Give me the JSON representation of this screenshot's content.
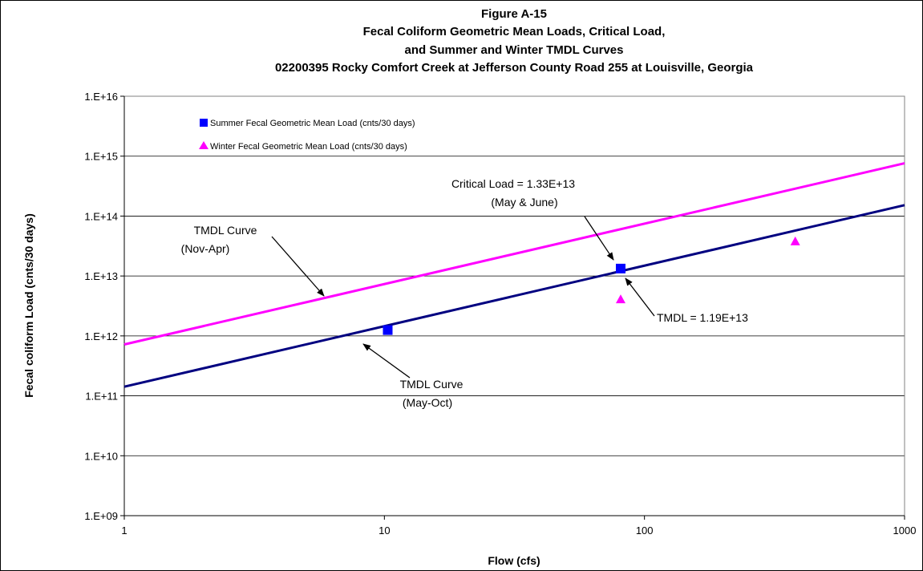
{
  "chart_data": {
    "type": "scatter",
    "title_lines": [
      "Figure A-15",
      "Fecal Coliform Geometric Mean Loads,  Critical Load,",
      "and Summer and Winter TMDL Curves",
      "02200395 Rocky Comfort Creek at Jefferson County Road 255 at Louisville, Georgia"
    ],
    "xlabel": "Flow   (cfs)",
    "ylabel": "Fecal coliform Load  (cnts/30 days)",
    "x_scale": "log",
    "y_scale": "log",
    "xlim": [
      1,
      1000
    ],
    "ylim": [
      1000000000,
      10000000000000000
    ],
    "x_ticks": [
      1,
      10,
      100,
      1000
    ],
    "x_tick_labels": [
      "1",
      "10",
      "100",
      "1000"
    ],
    "y_ticks": [
      1000000000,
      10000000000,
      100000000000,
      1000000000000,
      10000000000000,
      100000000000000,
      1000000000000000,
      10000000000000000
    ],
    "y_tick_labels": [
      "1.E+09",
      "1.E+10",
      "1.E+11",
      "1.E+12",
      "1.E+13",
      "1.E+14",
      "1.E+15",
      "1.E+16"
    ],
    "grid": "horizontal",
    "series": [
      {
        "name": "Summer Fecal Geometric Mean Load (cnts/30 days)",
        "kind": "points",
        "marker": "square",
        "color": "#0000ff",
        "points": [
          {
            "x": 10.3,
            "y": 1250000000000
          },
          {
            "x": 81,
            "y": 13300000000000
          }
        ]
      },
      {
        "name": "Winter Fecal Geometric Mean Load (cnts/30 days)",
        "kind": "points",
        "marker": "triangle",
        "color": "#ff00ff",
        "points": [
          {
            "x": 81,
            "y": 4100000000000
          },
          {
            "x": 380,
            "y": 38000000000000
          }
        ]
      },
      {
        "kind": "line",
        "color": "#ff00ff",
        "points": [
          {
            "x": 1,
            "y": 720000000000
          },
          {
            "x": 1000,
            "y": 760000000000000
          }
        ]
      },
      {
        "kind": "line",
        "color": "#000080",
        "points": [
          {
            "x": 1,
            "y": 142000000000
          },
          {
            "x": 1000,
            "y": 152000000000000
          }
        ]
      }
    ],
    "legend_position": "top-left",
    "annotations": [
      {
        "lines": [
          "Critical Load = 1.33E+13",
          "(May & June)"
        ],
        "target": {
          "x": 81,
          "y": 13300000000000
        }
      },
      {
        "lines": [
          "TMDL = 1.19E+13"
        ],
        "target": {
          "x": 82,
          "y": 12000000000000
        }
      },
      {
        "lines": [
          "TMDL Curve",
          "(Nov-Apr)"
        ],
        "target": {
          "x": 6.3,
          "y": 4500000000000
        }
      },
      {
        "lines": [
          "TMDL Curve",
          "(May-Oct)"
        ],
        "target": {
          "x": 9.2,
          "y": 880000000000
        }
      }
    ]
  }
}
